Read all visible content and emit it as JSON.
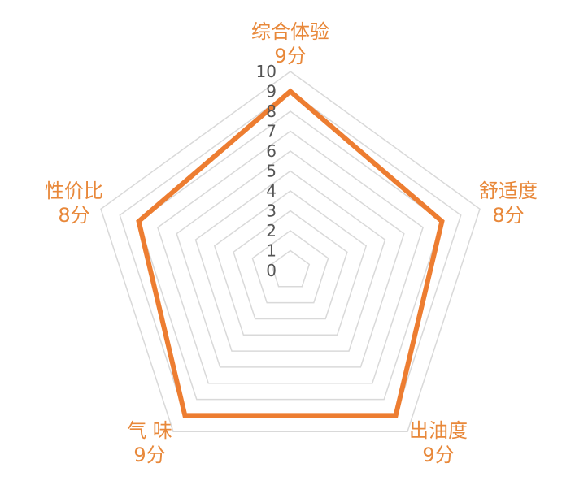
{
  "chart_data": {
    "type": "radar",
    "categories": [
      "综合体验",
      "舒适度",
      "出油度",
      "气  味",
      "性价比"
    ],
    "value_labels": [
      "9分",
      "8分",
      "9分",
      "9分",
      "8分"
    ],
    "series": [
      {
        "values": [
          9,
          8,
          9,
          9,
          8
        ]
      }
    ],
    "rlim": [
      0,
      10
    ],
    "ticks": [
      "0",
      "1",
      "2",
      "3",
      "4",
      "5",
      "6",
      "7",
      "8",
      "9",
      "10"
    ],
    "colors": {
      "series": "#ed7d31",
      "label": "#e8883a",
      "grid": "#d9d9d9",
      "tick": "#555555"
    }
  }
}
